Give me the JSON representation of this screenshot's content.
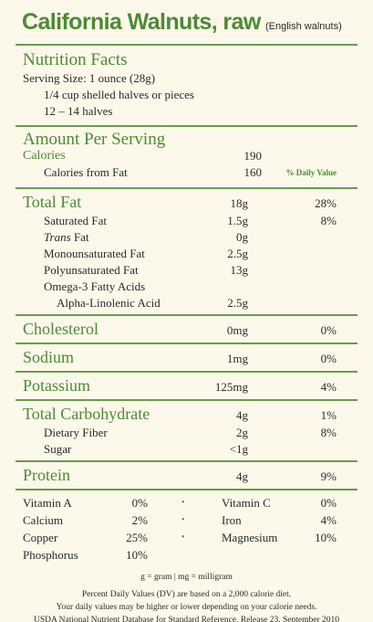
{
  "title": "California Walnuts, raw",
  "subtitle": "(English walnuts)",
  "facts_heading": "Nutrition Facts",
  "serving": [
    "Serving Size: 1 ounce (28g)",
    "1/4 cup shelled halves or pieces",
    "12 – 14 halves"
  ],
  "amount_heading": "Amount Per Serving",
  "calories": {
    "label": "Calories",
    "amount": "190"
  },
  "calories_fat": {
    "label": "Calories from Fat",
    "amount": "160"
  },
  "dv_heading": "% Daily Value",
  "groups": [
    {
      "rows": [
        {
          "level": 0,
          "label": "Total Fat",
          "amount": "18g",
          "dv": "28%"
        },
        {
          "level": 1,
          "label": "Saturated Fat",
          "amount": "1.5g",
          "dv": "8%"
        },
        {
          "level": 1,
          "italic": "Trans",
          "label": "Fat",
          "amount": "0g"
        },
        {
          "level": 1,
          "label": "Monounsaturated Fat",
          "amount": "2.5g"
        },
        {
          "level": 1,
          "label": "Polyunsaturated Fat",
          "amount": "13g"
        },
        {
          "level": 1,
          "label": "Omega-3 Fatty Acids"
        },
        {
          "level": 2,
          "label": "Alpha-Linolenic Acid",
          "amount": "2.5g"
        }
      ]
    },
    {
      "rows": [
        {
          "level": 0,
          "label": "Cholesterol",
          "amount": "0mg",
          "dv": "0%"
        }
      ]
    },
    {
      "rows": [
        {
          "level": 0,
          "label": "Sodium",
          "amount": "1mg",
          "dv": "0%"
        }
      ]
    },
    {
      "rows": [
        {
          "level": 0,
          "label": "Potassium",
          "amount": "125mg",
          "dv": "4%"
        }
      ]
    },
    {
      "rows": [
        {
          "level": 0,
          "label": "Total Carbohydrate",
          "amount": "4g",
          "dv": "1%"
        },
        {
          "level": 1,
          "label": "Dietary Fiber",
          "amount": "2g",
          "dv": "8%"
        },
        {
          "level": 1,
          "label": "Sugar",
          "amount": "<1g"
        }
      ]
    },
    {
      "rows": [
        {
          "level": 0,
          "label": "Protein",
          "amount": "4g",
          "dv": "9%"
        }
      ]
    }
  ],
  "vitamins": [
    [
      {
        "name": "Vitamin A",
        "dv": "0%"
      },
      {
        "name": "Vitamin C",
        "dv": "0%"
      }
    ],
    [
      {
        "name": "Calcium",
        "dv": "2%"
      },
      {
        "name": "Iron",
        "dv": "4%"
      }
    ],
    [
      {
        "name": "Copper",
        "dv": "25%"
      },
      {
        "name": "Magnesium",
        "dv": "10%"
      }
    ],
    [
      {
        "name": "Phosphorus",
        "dv": "10%"
      }
    ]
  ],
  "units": [
    "g = gram",
    "mg = milligram"
  ],
  "footnotes": [
    "Percent Daily Values (DV) are based on a 2,000 calorie diet.",
    "Your daily values may be higher or lower depending on your calorie needs.",
    "USDA National Nutrient Database for Standard Reference, Release 23, September 2010"
  ]
}
